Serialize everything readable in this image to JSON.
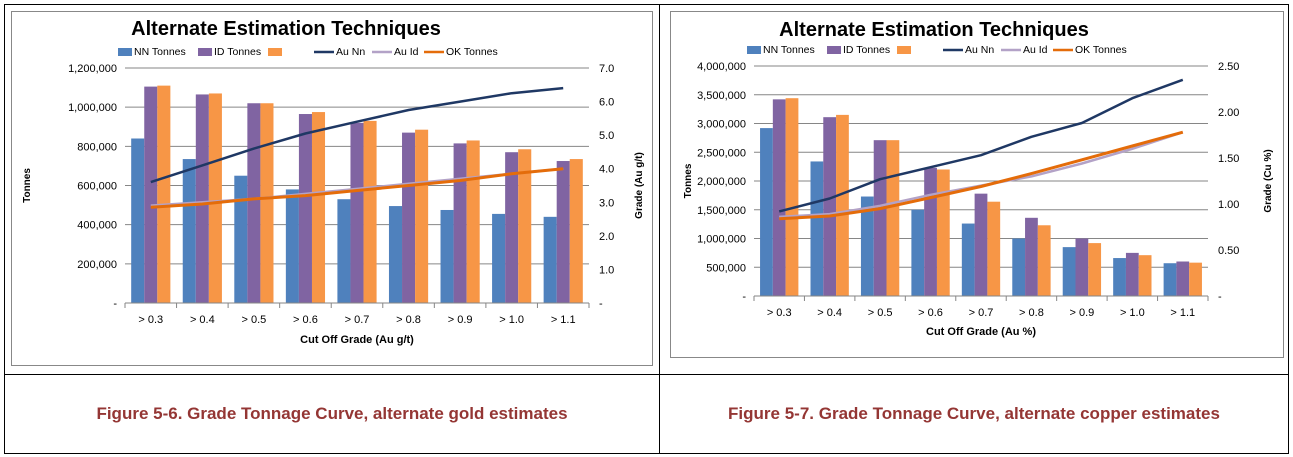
{
  "colors": {
    "nn_tonnes": "#4f81bd",
    "id_tonnes": "#8064a2",
    "ok_tonnes_bar": "#f79646",
    "au_nn": "#1f3864",
    "au_id": "#b3a2c7",
    "ok_tonnes_line": "#e46c0a",
    "caption": "#943634",
    "grid": "#868686"
  },
  "chart_data": [
    {
      "type": "bar",
      "title": "Alternate Estimation Techniques",
      "xlabel": "Cut Off Grade (Au g/t)",
      "ylabel": "Tonnes",
      "y2label": "Grade (Au g/t)",
      "categories": [
        "> 0.3",
        "> 0.4",
        "> 0.5",
        "> 0.6",
        "> 0.7",
        "> 0.8",
        "> 0.9",
        "> 1.0",
        "> 1.1"
      ],
      "ylim": [
        0,
        1200000
      ],
      "y_ticks": [
        "-",
        "200,000",
        "400,000",
        "600,000",
        "800,000",
        "1,000,000",
        "1,200,000"
      ],
      "y2lim": [
        0,
        7
      ],
      "y2_ticks": [
        "-",
        "1.0",
        "2.0",
        "3.0",
        "4.0",
        "5.0",
        "6.0",
        "7.0"
      ],
      "legend": [
        "NN Tonnes",
        "ID Tonnes",
        "",
        "Au Nn",
        "Au Id",
        "OK Tonnes"
      ],
      "legend_position": "top",
      "grid": true,
      "bar_series": [
        {
          "name": "NN Tonnes",
          "values": [
            840000,
            735000,
            650000,
            580000,
            530000,
            495000,
            475000,
            455000,
            440000
          ]
        },
        {
          "name": "ID Tonnes",
          "values": [
            1105000,
            1065000,
            1020000,
            965000,
            920000,
            870000,
            815000,
            770000,
            725000
          ]
        },
        {
          "name": "",
          "values": [
            1110000,
            1070000,
            1020000,
            975000,
            930000,
            885000,
            830000,
            785000,
            735000
          ]
        }
      ],
      "line_series": [
        {
          "name": "Au Nn",
          "values": [
            3.6,
            4.1,
            4.6,
            5.05,
            5.4,
            5.75,
            6.0,
            6.25,
            6.4
          ]
        },
        {
          "name": "Au Id",
          "values": [
            2.9,
            3.0,
            3.1,
            3.25,
            3.4,
            3.55,
            3.7,
            3.85,
            4.0
          ]
        },
        {
          "name": "OK Tonnes",
          "values": [
            2.85,
            2.95,
            3.1,
            3.2,
            3.35,
            3.5,
            3.65,
            3.85,
            4.0
          ]
        }
      ]
    },
    {
      "type": "bar",
      "title": "Alternate Estimation Techniques",
      "xlabel": "Cut Off Grade (Au %)",
      "ylabel": "Tonnes",
      "y2label": "Grade (Cu %)",
      "categories": [
        "> 0.3",
        "> 0.4",
        "> 0.5",
        "> 0.6",
        "> 0.7",
        "> 0.8",
        "> 0.9",
        "> 1.0",
        "> 1.1"
      ],
      "ylim": [
        0,
        4000000
      ],
      "y_ticks": [
        "-",
        "500,000",
        "1,000,000",
        "1,500,000",
        "2,000,000",
        "2,500,000",
        "3,000,000",
        "3,500,000",
        "4,000,000"
      ],
      "y2lim": [
        0,
        2.5
      ],
      "y2_ticks": [
        "-",
        "0.50",
        "1.00",
        "1.50",
        "2.00",
        "2.50"
      ],
      "legend": [
        "NN Tonnes",
        "ID Tonnes",
        "",
        "Au Nn",
        "Au Id",
        "OK Tonnes"
      ],
      "legend_position": "top",
      "grid": true,
      "bar_series": [
        {
          "name": "NN Tonnes",
          "values": [
            2920000,
            2340000,
            1730000,
            1500000,
            1260000,
            1000000,
            850000,
            660000,
            570000
          ]
        },
        {
          "name": "ID Tonnes",
          "values": [
            3420000,
            3110000,
            2710000,
            2230000,
            1780000,
            1360000,
            1000000,
            750000,
            600000
          ]
        },
        {
          "name": "",
          "values": [
            3440000,
            3150000,
            2710000,
            2200000,
            1640000,
            1230000,
            920000,
            710000,
            580000
          ]
        }
      ],
      "line_series": [
        {
          "name": "Au Nn",
          "values": [
            0.92,
            1.06,
            1.27,
            1.4,
            1.53,
            1.73,
            1.88,
            2.15,
            2.35
          ]
        },
        {
          "name": "Au Id",
          "values": [
            0.86,
            0.89,
            0.98,
            1.1,
            1.2,
            1.3,
            1.44,
            1.6,
            1.78
          ]
        },
        {
          "name": "OK Tonnes",
          "values": [
            0.84,
            0.87,
            0.95,
            1.07,
            1.19,
            1.33,
            1.48,
            1.63,
            1.78
          ]
        }
      ]
    }
  ],
  "captions": [
    "Figure 5-6. Grade Tonnage Curve, alternate gold estimates",
    "Figure 5-7. Grade Tonnage Curve, alternate copper estimates"
  ]
}
